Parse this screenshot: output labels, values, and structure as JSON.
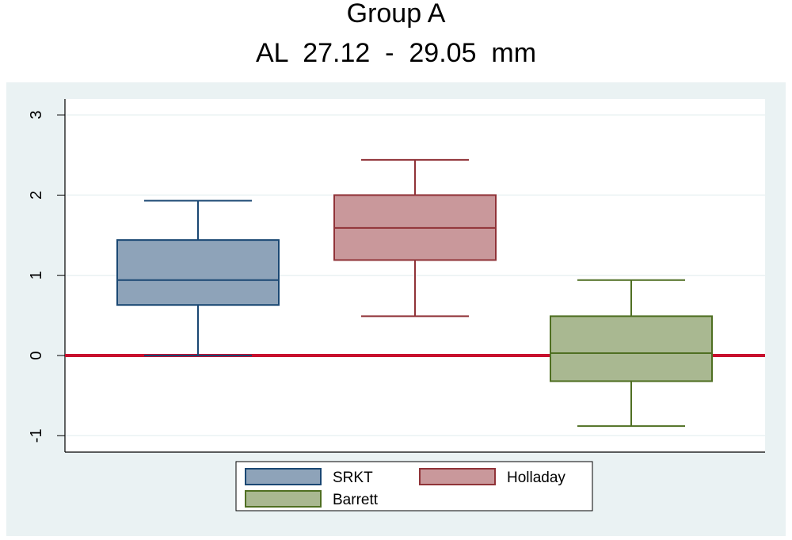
{
  "chart_data": {
    "type": "boxplot",
    "title": "Group A",
    "subtitle": "AL  27.12  -  29.05  mm",
    "ylim": [
      -1.2,
      3.2
    ],
    "yticks": [
      -1,
      0,
      1,
      2,
      3
    ],
    "ytick_labels": [
      "-1",
      "0",
      "1",
      "2",
      "3"
    ],
    "grid": true,
    "reference_line": {
      "value": 0,
      "color": "#c8102e"
    },
    "legend_position": "bottom",
    "series": [
      {
        "name": "SRKT",
        "fill": "#8ea3b9",
        "stroke": "#1a4773",
        "whisker_low": 0.0,
        "q1": 0.63,
        "median": 0.94,
        "q3": 1.44,
        "whisker_high": 1.93
      },
      {
        "name": "Holladay",
        "fill": "#c9989b",
        "stroke": "#903338",
        "whisker_low": 0.49,
        "q1": 1.19,
        "median": 1.59,
        "q3": 2.0,
        "whisker_high": 2.44
      },
      {
        "name": "Barrett",
        "fill": "#a9b891",
        "stroke": "#4f6f22",
        "whisker_low": -0.88,
        "q1": -0.32,
        "median": 0.03,
        "q3": 0.49,
        "whisker_high": 0.94
      }
    ]
  }
}
